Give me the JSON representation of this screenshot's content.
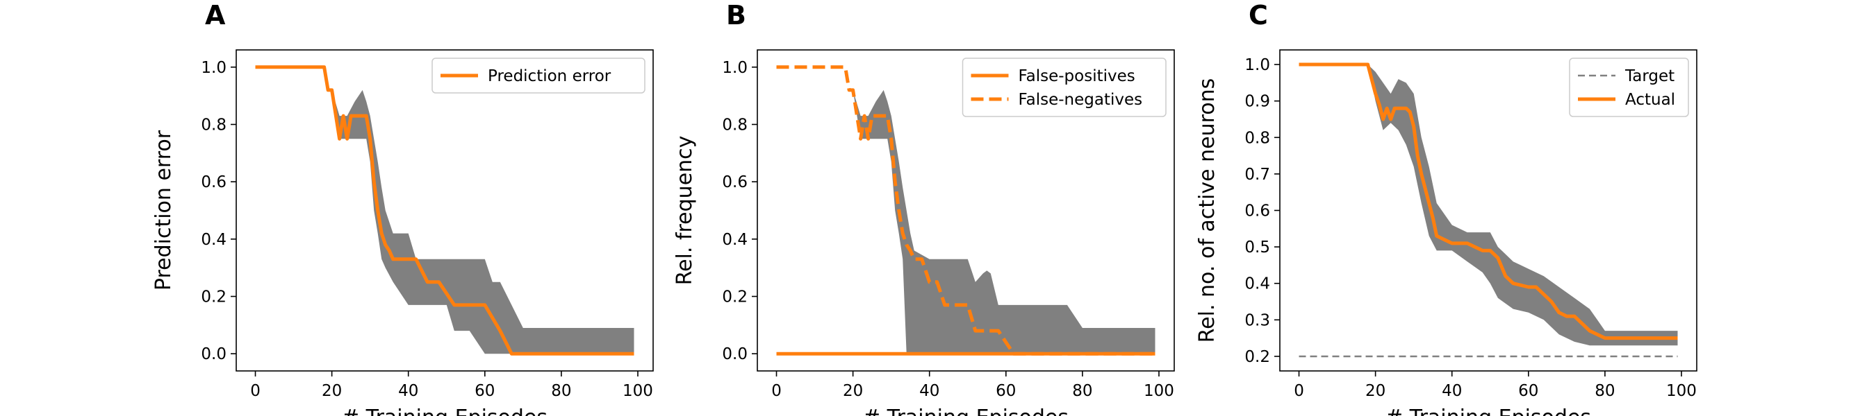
{
  "chart_data": [
    {
      "panel": "A",
      "type": "line",
      "xlabel": "# Training Episodes",
      "ylabel": "Prediction error",
      "xlim": [
        -5,
        104
      ],
      "ylim": [
        -0.06,
        1.06
      ],
      "xticks": [
        0,
        20,
        40,
        60,
        80,
        100
      ],
      "yticks": [
        0.0,
        0.2,
        0.4,
        0.6,
        0.8,
        1.0
      ],
      "ytick_decimals": 1,
      "legend_position": "top-right",
      "series": [
        {
          "name": "Prediction error",
          "style": "solid",
          "color": "#ff7f0e",
          "x": [
            0,
            18,
            19,
            20,
            22,
            23,
            24,
            25,
            26,
            28,
            29,
            30,
            31,
            32,
            33,
            34,
            35,
            36,
            40,
            42,
            45,
            48,
            52,
            58,
            60,
            64,
            67,
            80,
            99
          ],
          "y": [
            1.0,
            1.0,
            0.92,
            0.92,
            0.75,
            0.83,
            0.75,
            0.83,
            0.83,
            0.83,
            0.83,
            0.75,
            0.6,
            0.5,
            0.42,
            0.38,
            0.36,
            0.33,
            0.33,
            0.33,
            0.25,
            0.25,
            0.17,
            0.17,
            0.17,
            0.08,
            0.0,
            0.0,
            0.0
          ]
        }
      ],
      "band": {
        "color": "#808080",
        "x": [
          0,
          18,
          20,
          22,
          24,
          26,
          28,
          29,
          30,
          31,
          32,
          33,
          34,
          36,
          40,
          42,
          46,
          50,
          52,
          56,
          60,
          62,
          64,
          67,
          70,
          78,
          80,
          99
        ],
        "upper": [
          1.0,
          1.0,
          0.92,
          0.83,
          0.83,
          0.88,
          0.92,
          0.88,
          0.83,
          0.75,
          0.67,
          0.58,
          0.5,
          0.42,
          0.42,
          0.33,
          0.33,
          0.33,
          0.33,
          0.33,
          0.33,
          0.25,
          0.25,
          0.17,
          0.09,
          0.09,
          0.09,
          0.09
        ],
        "lower": [
          1.0,
          1.0,
          0.92,
          0.75,
          0.75,
          0.75,
          0.75,
          0.75,
          0.67,
          0.5,
          0.42,
          0.33,
          0.3,
          0.25,
          0.17,
          0.17,
          0.17,
          0.17,
          0.08,
          0.08,
          0.0,
          0.0,
          0.0,
          0.0,
          0.0,
          0.0,
          0.0,
          0.0
        ]
      }
    },
    {
      "panel": "B",
      "type": "line",
      "xlabel": "# Training Episodes",
      "ylabel": "Rel. frequency",
      "xlim": [
        -5,
        104
      ],
      "ylim": [
        -0.06,
        1.06
      ],
      "xticks": [
        0,
        20,
        40,
        60,
        80,
        100
      ],
      "yticks": [
        0.0,
        0.2,
        0.4,
        0.6,
        0.8,
        1.0
      ],
      "ytick_decimals": 1,
      "legend_position": "top-right",
      "series": [
        {
          "name": "False-positives",
          "style": "solid",
          "color": "#ff7f0e",
          "x": [
            0,
            99
          ],
          "y": [
            0.0,
            0.0
          ]
        },
        {
          "name": "False-negatives",
          "style": "dashed",
          "color": "#ff7f0e",
          "x": [
            0,
            18,
            19,
            20,
            22,
            23,
            24,
            25,
            26,
            28,
            29,
            30,
            31,
            32,
            33,
            34,
            35,
            36,
            38,
            40,
            42,
            44,
            46,
            50,
            52,
            56,
            58,
            60,
            62,
            99
          ],
          "y": [
            1.0,
            1.0,
            0.92,
            0.92,
            0.75,
            0.83,
            0.75,
            0.83,
            0.83,
            0.83,
            0.83,
            0.75,
            0.6,
            0.5,
            0.42,
            0.38,
            0.36,
            0.33,
            0.33,
            0.25,
            0.25,
            0.17,
            0.17,
            0.17,
            0.08,
            0.08,
            0.08,
            0.04,
            0.0,
            0.0
          ]
        }
      ],
      "band": {
        "color": "#808080",
        "x": [
          0,
          18,
          20,
          22,
          24,
          26,
          28,
          29,
          30,
          31,
          32,
          33,
          34,
          35,
          36,
          40,
          46,
          50,
          52,
          54,
          55,
          56,
          58,
          62,
          66,
          70,
          76,
          80,
          99
        ],
        "upper": [
          1.0,
          1.0,
          0.92,
          0.83,
          0.83,
          0.88,
          0.92,
          0.88,
          0.83,
          0.75,
          0.67,
          0.58,
          0.5,
          0.42,
          0.36,
          0.33,
          0.33,
          0.33,
          0.25,
          0.28,
          0.29,
          0.28,
          0.17,
          0.17,
          0.17,
          0.17,
          0.17,
          0.09,
          0.09
        ],
        "lower": [
          1.0,
          1.0,
          0.92,
          0.75,
          0.75,
          0.75,
          0.75,
          0.75,
          0.67,
          0.5,
          0.42,
          0.33,
          0.0,
          0.0,
          0.0,
          0.0,
          0.0,
          0.0,
          0.0,
          0.0,
          0.0,
          0.0,
          0.0,
          0.0,
          0.0,
          0.0,
          0.0,
          0.0,
          0.0
        ]
      }
    },
    {
      "panel": "C",
      "type": "line",
      "xlabel": "# Training Episodes",
      "ylabel": "Rel. no. of active neurons",
      "xlim": [
        -5,
        104
      ],
      "ylim": [
        0.16,
        1.04
      ],
      "xticks": [
        0,
        20,
        40,
        60,
        80,
        100
      ],
      "yticks": [
        0.2,
        0.3,
        0.4,
        0.5,
        0.6,
        0.7,
        0.8,
        0.9,
        1.0
      ],
      "ytick_decimals": 1,
      "legend_position": "top-right",
      "series": [
        {
          "name": "Target",
          "style": "dashed-thin",
          "color": "#808080",
          "x": [
            0,
            99
          ],
          "y": [
            0.2,
            0.2
          ]
        },
        {
          "name": "Actual",
          "style": "solid",
          "color": "#ff7f0e",
          "x": [
            0,
            18,
            19,
            20,
            21,
            22,
            23,
            24,
            25,
            26,
            28,
            29,
            30,
            31,
            32,
            33,
            34,
            35,
            36,
            38,
            40,
            44,
            46,
            48,
            50,
            52,
            54,
            56,
            60,
            62,
            64,
            66,
            68,
            70,
            72,
            74,
            76,
            78,
            80,
            99
          ],
          "y": [
            1.0,
            1.0,
            0.96,
            0.92,
            0.89,
            0.85,
            0.88,
            0.85,
            0.88,
            0.88,
            0.88,
            0.87,
            0.83,
            0.75,
            0.7,
            0.66,
            0.62,
            0.58,
            0.53,
            0.52,
            0.51,
            0.51,
            0.5,
            0.49,
            0.49,
            0.47,
            0.42,
            0.4,
            0.39,
            0.39,
            0.37,
            0.35,
            0.32,
            0.31,
            0.31,
            0.29,
            0.27,
            0.26,
            0.25,
            0.25
          ]
        }
      ],
      "band": {
        "color": "#808080",
        "x": [
          0,
          18,
          20,
          22,
          24,
          26,
          28,
          30,
          32,
          34,
          36,
          40,
          44,
          48,
          50,
          52,
          56,
          60,
          64,
          68,
          72,
          76,
          78,
          80,
          99
        ],
        "upper": [
          1.0,
          1.0,
          0.98,
          0.95,
          0.92,
          0.96,
          0.95,
          0.92,
          0.8,
          0.72,
          0.62,
          0.56,
          0.54,
          0.54,
          0.54,
          0.5,
          0.46,
          0.44,
          0.42,
          0.39,
          0.36,
          0.33,
          0.3,
          0.27,
          0.27
        ],
        "lower": [
          1.0,
          1.0,
          0.9,
          0.82,
          0.84,
          0.82,
          0.78,
          0.72,
          0.62,
          0.53,
          0.49,
          0.49,
          0.46,
          0.43,
          0.4,
          0.36,
          0.33,
          0.32,
          0.3,
          0.26,
          0.24,
          0.23,
          0.23,
          0.23,
          0.23
        ]
      }
    }
  ]
}
